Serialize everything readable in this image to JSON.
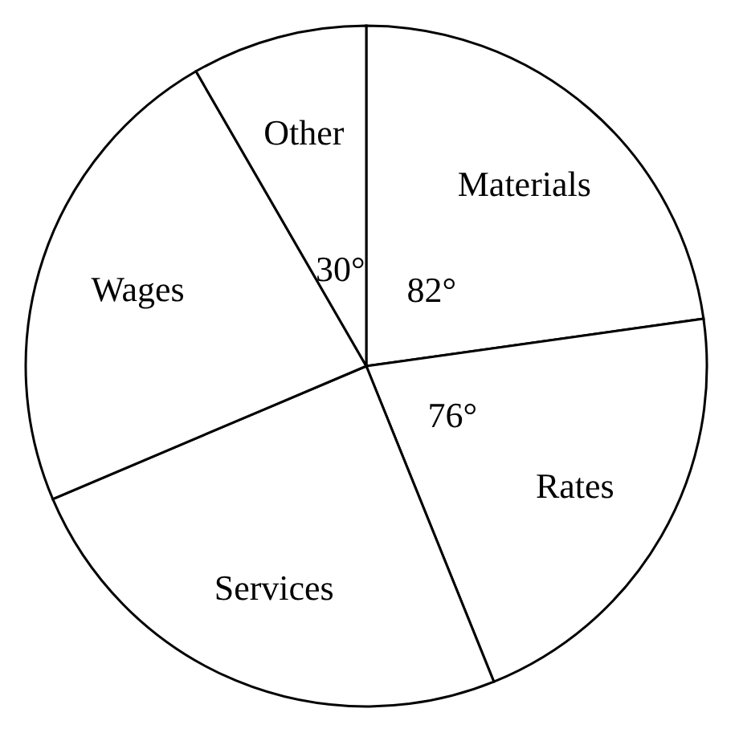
{
  "chart_data": {
    "type": "pie",
    "categories": [
      "Materials",
      "Rates",
      "Services",
      "Wages",
      "Other"
    ],
    "values": [
      82,
      76,
      89,
      83,
      30
    ],
    "value_labels": [
      "82°",
      "76°",
      null,
      null,
      "30°"
    ],
    "colors": [
      "#ffffff",
      "#ffffff",
      "#ffffff",
      "#ffffff",
      "#ffffff"
    ]
  }
}
